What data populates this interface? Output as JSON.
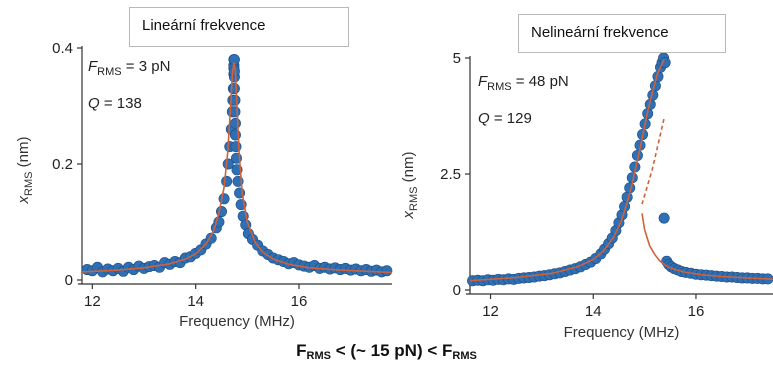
{
  "comparison": {
    "left": "F",
    "left_sub": "RMS",
    "middle": " < (~ 15 pN) < ",
    "right": "F",
    "right_sub": "RMS"
  },
  "colors": {
    "marker": "#2f6fb4",
    "marker_edge": "#1f4f86",
    "fit": "#d0623a",
    "axis": "#333333"
  },
  "chart_data": [
    {
      "type": "scatter",
      "title": "Lineární frekvence",
      "xlabel": "Frequency (MHz)",
      "ylabel": {
        "main": "x",
        "sub": "RMS",
        "unit": " (nm)"
      },
      "xlim": [
        11.8,
        17.8
      ],
      "ylim": [
        0,
        0.4
      ],
      "xticks": [
        {
          "v": 12,
          "label": "12"
        },
        {
          "v": 14,
          "label": "14"
        },
        {
          "v": 16,
          "label": "16"
        }
      ],
      "yticks": [
        {
          "v": 0,
          "label": "0"
        },
        {
          "v": 0.2,
          "label": "0.2"
        },
        {
          "v": 0.4,
          "label": "0.4"
        }
      ],
      "annotations": [
        {
          "main": "F",
          "sub": "RMS",
          "rest": " = 3 pN"
        },
        {
          "main": "Q",
          "sub": "",
          "rest": " = 138"
        }
      ],
      "fit_line": {
        "x": [
          11.8,
          12.5,
          13.0,
          13.5,
          13.8,
          14.0,
          14.2,
          14.35,
          14.45,
          14.55,
          14.62,
          14.67,
          14.71,
          14.74,
          14.77,
          14.8,
          14.84,
          14.9,
          15.0,
          15.15,
          15.3,
          15.5,
          15.8,
          16.2,
          16.8,
          17.8
        ],
        "y": [
          0.014,
          0.017,
          0.021,
          0.028,
          0.036,
          0.045,
          0.062,
          0.085,
          0.115,
          0.16,
          0.22,
          0.29,
          0.355,
          0.375,
          0.36,
          0.3,
          0.22,
          0.15,
          0.1,
          0.065,
          0.048,
          0.036,
          0.027,
          0.021,
          0.017,
          0.013
        ]
      },
      "points": {
        "x": [
          11.9,
          12.0,
          12.1,
          12.2,
          12.3,
          12.4,
          12.5,
          12.6,
          12.7,
          12.8,
          12.9,
          13.0,
          13.1,
          13.2,
          13.3,
          13.4,
          13.5,
          13.6,
          13.7,
          13.8,
          13.9,
          14.0,
          14.1,
          14.2,
          14.3,
          14.4,
          14.45,
          14.5,
          14.55,
          14.6,
          14.63,
          14.66,
          14.69,
          14.71,
          14.72,
          14.73,
          14.74,
          14.74,
          14.74,
          14.74,
          14.75,
          14.75,
          14.75,
          14.75,
          14.76,
          14.76,
          14.77,
          14.77,
          14.78,
          14.79,
          14.8,
          14.82,
          14.85,
          14.88,
          14.92,
          14.97,
          15.02,
          15.1,
          15.2,
          15.3,
          15.4,
          15.5,
          15.6,
          15.7,
          15.8,
          15.9,
          16.0,
          16.1,
          16.2,
          16.3,
          16.4,
          16.5,
          16.6,
          16.7,
          16.8,
          16.9,
          17.0,
          17.1,
          17.2,
          17.3,
          17.4,
          17.5,
          17.6,
          17.7
        ],
        "y": [
          0.018,
          0.016,
          0.022,
          0.014,
          0.019,
          0.016,
          0.02,
          0.015,
          0.022,
          0.018,
          0.024,
          0.02,
          0.023,
          0.025,
          0.022,
          0.03,
          0.027,
          0.032,
          0.03,
          0.038,
          0.04,
          0.046,
          0.052,
          0.062,
          0.072,
          0.09,
          0.1,
          0.118,
          0.14,
          0.17,
          0.2,
          0.23,
          0.26,
          0.29,
          0.31,
          0.33,
          0.355,
          0.37,
          0.38,
          0.365,
          0.35,
          0.38,
          0.36,
          0.33,
          0.31,
          0.29,
          0.27,
          0.25,
          0.23,
          0.21,
          0.19,
          0.17,
          0.15,
          0.13,
          0.11,
          0.095,
          0.08,
          0.07,
          0.06,
          0.05,
          0.044,
          0.038,
          0.035,
          0.032,
          0.028,
          0.03,
          0.026,
          0.024,
          0.022,
          0.025,
          0.02,
          0.022,
          0.019,
          0.021,
          0.018,
          0.02,
          0.017,
          0.019,
          0.016,
          0.018,
          0.015,
          0.017,
          0.014,
          0.016
        ]
      }
    },
    {
      "type": "scatter",
      "title": "Nelineární frekvence",
      "xlabel": "Frequency (MHz)",
      "ylabel": {
        "main": "x",
        "sub": "RMS",
        "unit": " (nm)"
      },
      "xlim": [
        11.6,
        17.5
      ],
      "ylim": [
        0,
        5
      ],
      "xticks": [
        {
          "v": 12,
          "label": "12"
        },
        {
          "v": 14,
          "label": "14"
        },
        {
          "v": 16,
          "label": "16"
        }
      ],
      "yticks": [
        {
          "v": 0,
          "label": "0"
        },
        {
          "v": 2.5,
          "label": "2.5"
        },
        {
          "v": 5,
          "label": "5"
        }
      ],
      "annotations": [
        {
          "main": "F",
          "sub": "RMS",
          "rest": " = 48 pN"
        },
        {
          "main": "Q",
          "sub": "",
          "rest": " = 129"
        }
      ],
      "fit_upper": {
        "x": [
          11.6,
          12.5,
          13.2,
          13.7,
          14.0,
          14.2,
          14.4,
          14.55,
          14.65,
          14.75,
          14.85,
          14.95,
          15.05,
          15.15,
          15.25,
          15.38
        ],
        "y": [
          0.2,
          0.27,
          0.36,
          0.5,
          0.66,
          0.84,
          1.14,
          1.5,
          1.85,
          2.25,
          2.75,
          3.25,
          3.8,
          4.25,
          4.65,
          4.97
        ]
      },
      "fit_unstable": {
        "x": [
          14.95,
          15.15,
          15.38
        ],
        "y": [
          1.85,
          2.6,
          3.7
        ]
      },
      "fit_lower": {
        "x": [
          14.95,
          15.0,
          15.1,
          15.2,
          15.3,
          15.45,
          15.6,
          15.8,
          16.1,
          16.5,
          17.0,
          17.5
        ],
        "y": [
          1.65,
          1.3,
          0.95,
          0.76,
          0.62,
          0.5,
          0.44,
          0.38,
          0.33,
          0.29,
          0.26,
          0.23
        ]
      },
      "points": {
        "x": [
          11.65,
          11.75,
          11.85,
          11.95,
          12.05,
          12.15,
          12.25,
          12.35,
          12.45,
          12.55,
          12.65,
          12.75,
          12.85,
          12.95,
          13.05,
          13.15,
          13.25,
          13.35,
          13.45,
          13.55,
          13.65,
          13.75,
          13.85,
          13.95,
          14.05,
          14.15,
          14.22,
          14.3,
          14.37,
          14.44,
          14.5,
          14.56,
          14.61,
          14.66,
          14.71,
          14.76,
          14.81,
          14.86,
          14.91,
          14.96,
          15.01,
          15.06,
          15.11,
          15.16,
          15.21,
          15.26,
          15.31,
          15.34,
          15.37,
          15.4,
          15.43,
          15.47,
          15.52,
          15.58,
          15.65,
          15.72,
          15.8,
          15.9,
          16.0,
          16.1,
          16.2,
          16.3,
          16.4,
          16.5,
          16.6,
          16.7,
          16.8,
          16.9,
          17.0,
          17.1,
          17.2,
          17.3,
          17.4,
          15.38
        ],
        "y": [
          0.2,
          0.21,
          0.2,
          0.22,
          0.21,
          0.23,
          0.22,
          0.24,
          0.23,
          0.25,
          0.26,
          0.27,
          0.28,
          0.3,
          0.31,
          0.33,
          0.35,
          0.37,
          0.4,
          0.43,
          0.46,
          0.5,
          0.55,
          0.6,
          0.68,
          0.78,
          0.88,
          1.0,
          1.12,
          1.28,
          1.45,
          1.62,
          1.8,
          2.0,
          2.2,
          2.42,
          2.65,
          2.9,
          3.12,
          3.35,
          3.58,
          3.8,
          4.0,
          4.2,
          4.4,
          4.6,
          4.8,
          4.9,
          5.0,
          4.9,
          0.62,
          0.55,
          0.5,
          0.46,
          0.43,
          0.4,
          0.38,
          0.36,
          0.34,
          0.33,
          0.32,
          0.31,
          0.3,
          0.29,
          0.28,
          0.28,
          0.27,
          0.26,
          0.26,
          0.25,
          0.25,
          0.24,
          0.24,
          1.55
        ]
      }
    }
  ]
}
